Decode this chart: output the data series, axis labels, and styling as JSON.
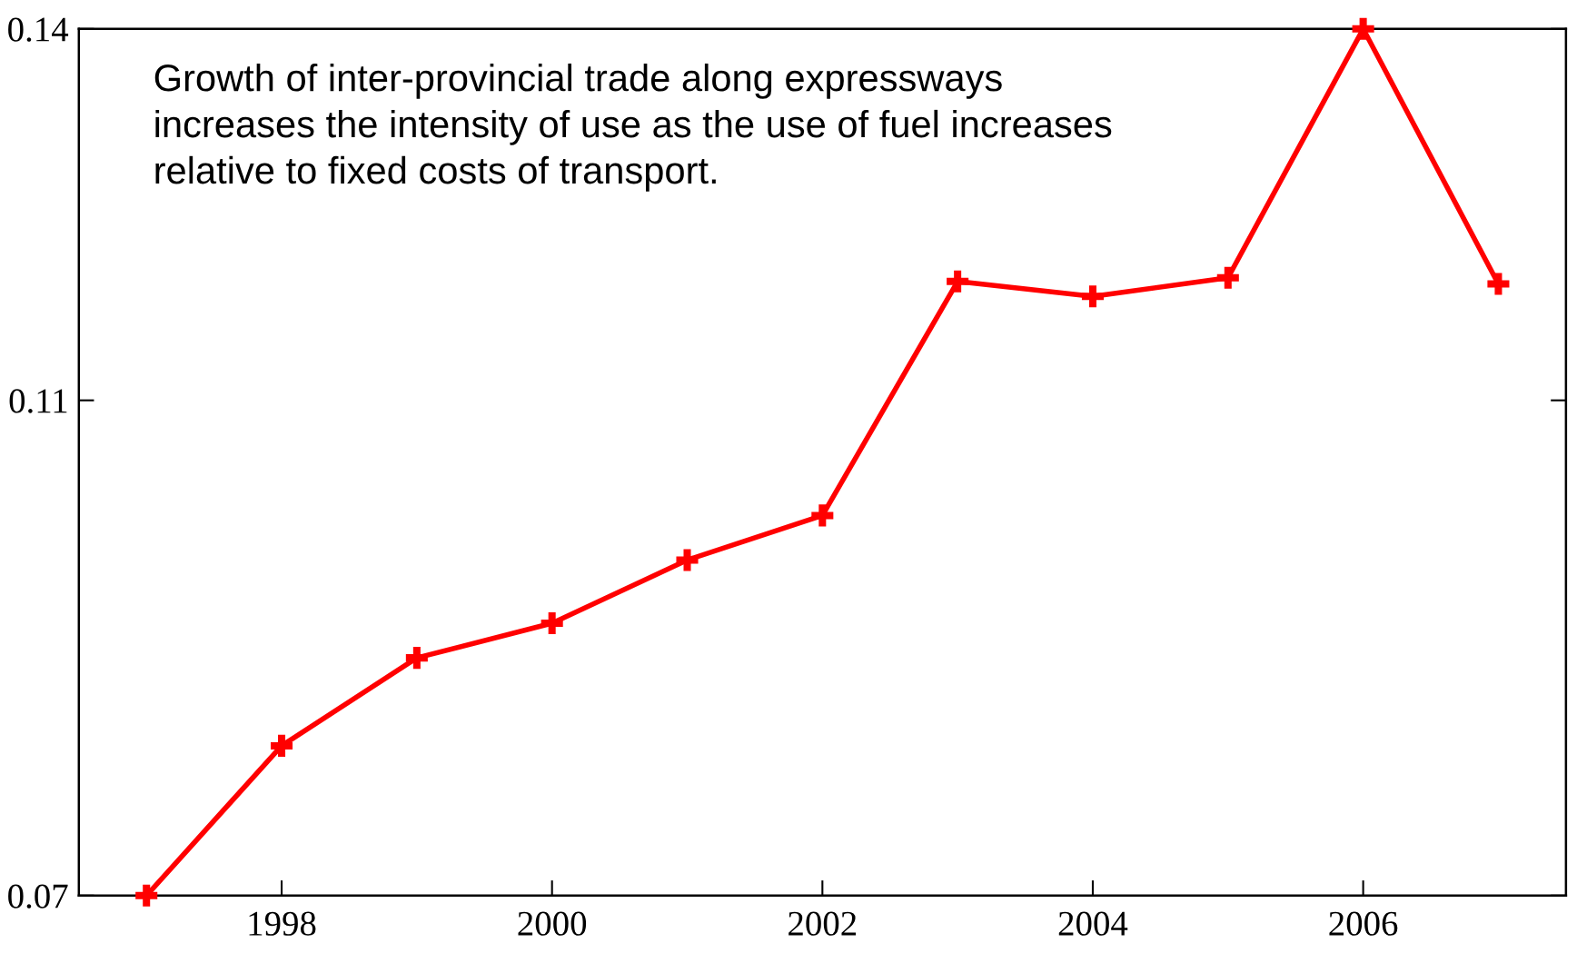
{
  "chart_data": {
    "type": "line",
    "annotations": [
      "Growth of inter-provincial trade along expressways\nincreases the intensity of use as the use of fuel increases\nrelative to fixed costs of transport."
    ],
    "x": [
      1997,
      1998,
      1999,
      2000,
      2001,
      2002,
      2003,
      2004,
      2005,
      2006,
      2007
    ],
    "series": [
      {
        "color": "#ff0000",
        "values": [
          0.07,
          0.0821,
          0.0892,
          0.092,
          0.0971,
          0.1007,
          0.1196,
          0.1184,
          0.1199,
          0.14,
          0.1194
        ]
      }
    ],
    "xlim": [
      1996.5,
      2007.5
    ],
    "xticks": [
      1998,
      2000,
      2002,
      2004,
      2006
    ],
    "ylim": [
      0.07,
      0.14
    ],
    "yticks": [
      0.07,
      0.11,
      0.14
    ],
    "marker": "cross",
    "line_style": "solid",
    "grid": false,
    "legend": false
  }
}
